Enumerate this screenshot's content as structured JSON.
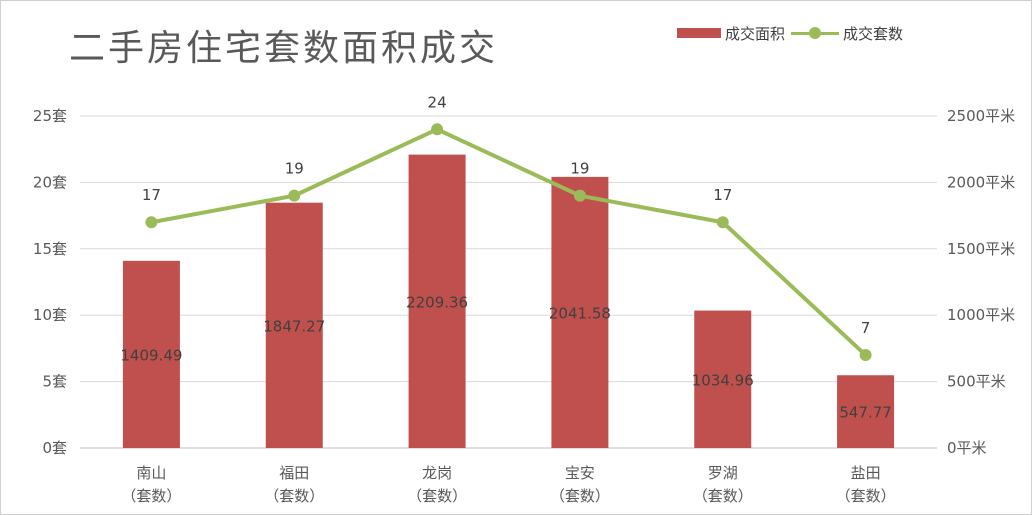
{
  "chart_data": {
    "type": "bar+line",
    "title": "二手房住宅套数面积成交",
    "categories": [
      [
        "南山",
        "（套数）"
      ],
      [
        "福田",
        "（套数）"
      ],
      [
        "龙岗",
        "（套数）"
      ],
      [
        "宝安",
        "（套数）"
      ],
      [
        "罗湖",
        "（套数）"
      ],
      [
        "盐田",
        "（套数）"
      ]
    ],
    "series": [
      {
        "name": "成交面积",
        "type": "bar",
        "axis": "right",
        "color": "#c0504d",
        "values": [
          1409.49,
          1847.27,
          2209.36,
          2041.58,
          1034.96,
          547.77
        ],
        "labels": [
          "1409.49",
          "1847.27",
          "2209.36",
          "2041.58",
          "1034.96",
          "547.77"
        ]
      },
      {
        "name": "成交套数",
        "type": "line",
        "axis": "left",
        "color": "#9bbb59",
        "values": [
          17,
          19,
          24,
          19,
          17,
          7
        ],
        "labels": [
          "17",
          "19",
          "24",
          "19",
          "17",
          "7"
        ]
      }
    ],
    "y_left": {
      "range": [
        0,
        25
      ],
      "ticks": [
        0,
        5,
        10,
        15,
        20,
        25
      ],
      "tick_labels": [
        "0套",
        "5套",
        "10套",
        "15套",
        "20套",
        "25套"
      ]
    },
    "y_right": {
      "range": [
        0,
        2500
      ],
      "ticks": [
        0,
        500,
        1000,
        1500,
        2000,
        2500
      ],
      "tick_labels": [
        "0平米",
        "500平米",
        "1000平米",
        "1500平米",
        "2000平米",
        "2500平米"
      ]
    },
    "grid": true,
    "legend_position": "top-right"
  }
}
